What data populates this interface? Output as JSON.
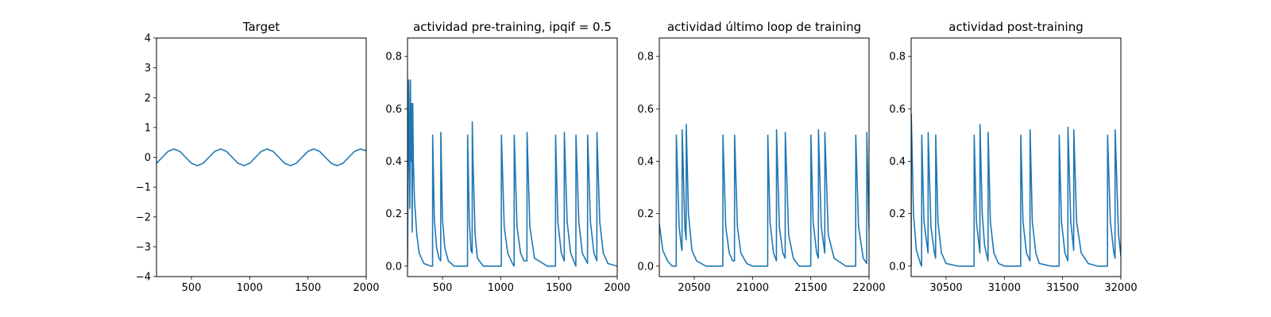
{
  "chart_data": [
    {
      "type": "line",
      "title": "Target",
      "xlim": [
        200,
        2000
      ],
      "ylim": [
        -4,
        4
      ],
      "xticks": [
        500,
        1000,
        1500,
        2000
      ],
      "xtick_labels": [
        "500",
        "1000",
        "1500",
        "2000"
      ],
      "yticks": [
        -4,
        -3,
        -2,
        -1,
        0,
        1,
        2,
        3,
        4
      ],
      "ytick_labels": [
        "−4",
        "−3",
        "−2",
        "−1",
        "0",
        "1",
        "2",
        "3",
        "4"
      ],
      "series": [
        {
          "color": "#1f77b4",
          "x": [
            200,
            250,
            300,
            350,
            400,
            450,
            500,
            550,
            600,
            650,
            700,
            750,
            800,
            850,
            900,
            950,
            1000,
            1050,
            1100,
            1150,
            1200,
            1250,
            1300,
            1350,
            1400,
            1450,
            1500,
            1550,
            1600,
            1650,
            1700,
            1750,
            1800,
            1850,
            1900,
            1950,
            2000
          ],
          "y": [
            -0.2,
            0.0,
            0.2,
            0.28,
            0.2,
            0.0,
            -0.2,
            -0.28,
            -0.2,
            0.0,
            0.2,
            0.28,
            0.2,
            0.0,
            -0.2,
            -0.28,
            -0.2,
            0.0,
            0.2,
            0.28,
            0.2,
            0.0,
            -0.2,
            -0.28,
            -0.2,
            0.0,
            0.2,
            0.28,
            0.2,
            0.0,
            -0.2,
            -0.28,
            -0.2,
            0.0,
            0.2,
            0.28,
            0.22
          ]
        }
      ]
    },
    {
      "type": "line",
      "title": "actividad pre-training, ipqif = 0.5",
      "xlim": [
        200,
        2000
      ],
      "ylim": [
        -0.04,
        0.87
      ],
      "xticks": [
        500,
        1000,
        1500,
        2000
      ],
      "xtick_labels": [
        "500",
        "1000",
        "1500",
        "2000"
      ],
      "yticks": [
        0.0,
        0.2,
        0.4,
        0.6,
        0.8
      ],
      "ytick_labels": [
        "0.0",
        "0.2",
        "0.4",
        "0.6",
        "0.8"
      ],
      "series": [
        {
          "color": "#1f77b4",
          "x": [
            200,
            210,
            215,
            220,
            225,
            230,
            235,
            240,
            245,
            250,
            260,
            280,
            300,
            340,
            400,
            415,
            416,
            430,
            450,
            470,
            485,
            486,
            500,
            520,
            550,
            600,
            700,
            715,
            716,
            730,
            745,
            755,
            756,
            762,
            780,
            800,
            850,
            1000,
            1005,
            1006,
            1030,
            1060,
            1100,
            1115,
            1116,
            1140,
            1170,
            1200,
            1225,
            1226,
            1250,
            1290,
            1400,
            1470,
            1471,
            1490,
            1520,
            1545,
            1546,
            1570,
            1600,
            1645,
            1646,
            1670,
            1700,
            1745,
            1746,
            1770,
            1800,
            1825,
            1826,
            1850,
            1880,
            1920,
            2000
          ],
          "y": [
            0.0,
            0.71,
            0.48,
            0.22,
            0.71,
            0.4,
            0.62,
            0.13,
            0.62,
            0.4,
            0.25,
            0.12,
            0.05,
            0.01,
            0.0,
            0.0,
            0.5,
            0.18,
            0.07,
            0.03,
            0.02,
            0.51,
            0.18,
            0.07,
            0.02,
            0.0,
            0.0,
            0.0,
            0.5,
            0.18,
            0.06,
            0.05,
            0.55,
            0.4,
            0.12,
            0.03,
            0.0,
            0.0,
            0.0,
            0.5,
            0.15,
            0.05,
            0.01,
            0.0,
            0.5,
            0.15,
            0.05,
            0.02,
            0.02,
            0.51,
            0.15,
            0.03,
            0.0,
            0.0,
            0.5,
            0.17,
            0.05,
            0.02,
            0.51,
            0.17,
            0.05,
            0.0,
            0.5,
            0.17,
            0.05,
            0.01,
            0.5,
            0.17,
            0.05,
            0.02,
            0.51,
            0.17,
            0.05,
            0.01,
            0.0
          ]
        }
      ]
    },
    {
      "type": "line",
      "title": "actividad último loop de training",
      "xlim": [
        20200,
        22000
      ],
      "ylim": [
        -0.04,
        0.87
      ],
      "xticks": [
        20500,
        21000,
        21500,
        22000
      ],
      "xtick_labels": [
        "20500",
        "21000",
        "21500",
        "22000"
      ],
      "yticks": [
        0.0,
        0.2,
        0.4,
        0.6,
        0.8
      ],
      "ytick_labels": [
        "0.0",
        "0.2",
        "0.4",
        "0.6",
        "0.8"
      ],
      "series": [
        {
          "color": "#1f77b4",
          "x": [
            20200,
            20230,
            20270,
            20310,
            20345,
            20346,
            20370,
            20390,
            20395,
            20396,
            20420,
            20430,
            20431,
            20450,
            20480,
            20520,
            20600,
            20745,
            20746,
            20770,
            20800,
            20830,
            20845,
            20846,
            20870,
            20900,
            20950,
            21000,
            21130,
            21131,
            21150,
            21180,
            21205,
            21206,
            21230,
            21260,
            21280,
            21281,
            21310,
            21350,
            21400,
            21500,
            21501,
            21520,
            21550,
            21565,
            21566,
            21590,
            21620,
            21621,
            21650,
            21700,
            21800,
            21885,
            21886,
            21910,
            21950,
            21980,
            21981,
            22000
          ],
          "y": [
            0.16,
            0.06,
            0.02,
            0.0,
            0.0,
            0.5,
            0.15,
            0.07,
            0.06,
            0.52,
            0.14,
            0.1,
            0.54,
            0.2,
            0.06,
            0.02,
            0.0,
            0.0,
            0.5,
            0.15,
            0.05,
            0.02,
            0.02,
            0.5,
            0.15,
            0.05,
            0.01,
            0.0,
            0.0,
            0.5,
            0.17,
            0.05,
            0.02,
            0.52,
            0.15,
            0.05,
            0.03,
            0.51,
            0.12,
            0.03,
            0.0,
            0.0,
            0.5,
            0.17,
            0.05,
            0.03,
            0.52,
            0.15,
            0.05,
            0.51,
            0.12,
            0.03,
            0.0,
            0.0,
            0.5,
            0.15,
            0.03,
            0.01,
            0.51,
            0.14
          ]
        }
      ]
    },
    {
      "type": "line",
      "title": "actividad post-training",
      "xlim": [
        30200,
        32000
      ],
      "ylim": [
        -0.04,
        0.87
      ],
      "xticks": [
        30500,
        31000,
        31500,
        32000
      ],
      "xtick_labels": [
        "30500",
        "31000",
        "31500",
        "32000"
      ],
      "yticks": [
        0.0,
        0.2,
        0.4,
        0.6,
        0.8
      ],
      "ytick_labels": [
        "0.0",
        "0.2",
        "0.4",
        "0.6",
        "0.8"
      ],
      "series": [
        {
          "color": "#1f77b4",
          "x": [
            30200,
            30201,
            30220,
            30245,
            30280,
            30290,
            30291,
            30310,
            30345,
            30346,
            30370,
            30400,
            30410,
            30411,
            30430,
            30460,
            30500,
            30600,
            30740,
            30741,
            30760,
            30790,
            30791,
            30810,
            30830,
            30860,
            30861,
            30880,
            30910,
            30950,
            31000,
            31140,
            31141,
            31160,
            31190,
            31220,
            31221,
            31240,
            31270,
            31300,
            31400,
            31470,
            31471,
            31490,
            31520,
            31545,
            31546,
            31570,
            31595,
            31596,
            31620,
            31660,
            31720,
            31800,
            31885,
            31886,
            31910,
            31940,
            31950,
            31951,
            31980,
            32000
          ],
          "y": [
            0.0,
            0.58,
            0.2,
            0.06,
            0.01,
            0.0,
            0.5,
            0.17,
            0.05,
            0.51,
            0.15,
            0.05,
            0.03,
            0.5,
            0.17,
            0.05,
            0.01,
            0.0,
            0.0,
            0.5,
            0.17,
            0.05,
            0.54,
            0.2,
            0.08,
            0.02,
            0.51,
            0.17,
            0.05,
            0.01,
            0.0,
            0.0,
            0.5,
            0.17,
            0.05,
            0.02,
            0.52,
            0.17,
            0.05,
            0.01,
            0.0,
            0.0,
            0.5,
            0.17,
            0.05,
            0.02,
            0.53,
            0.17,
            0.06,
            0.52,
            0.17,
            0.05,
            0.01,
            0.0,
            0.0,
            0.5,
            0.17,
            0.05,
            0.03,
            0.52,
            0.12,
            0.04
          ]
        }
      ]
    }
  ]
}
